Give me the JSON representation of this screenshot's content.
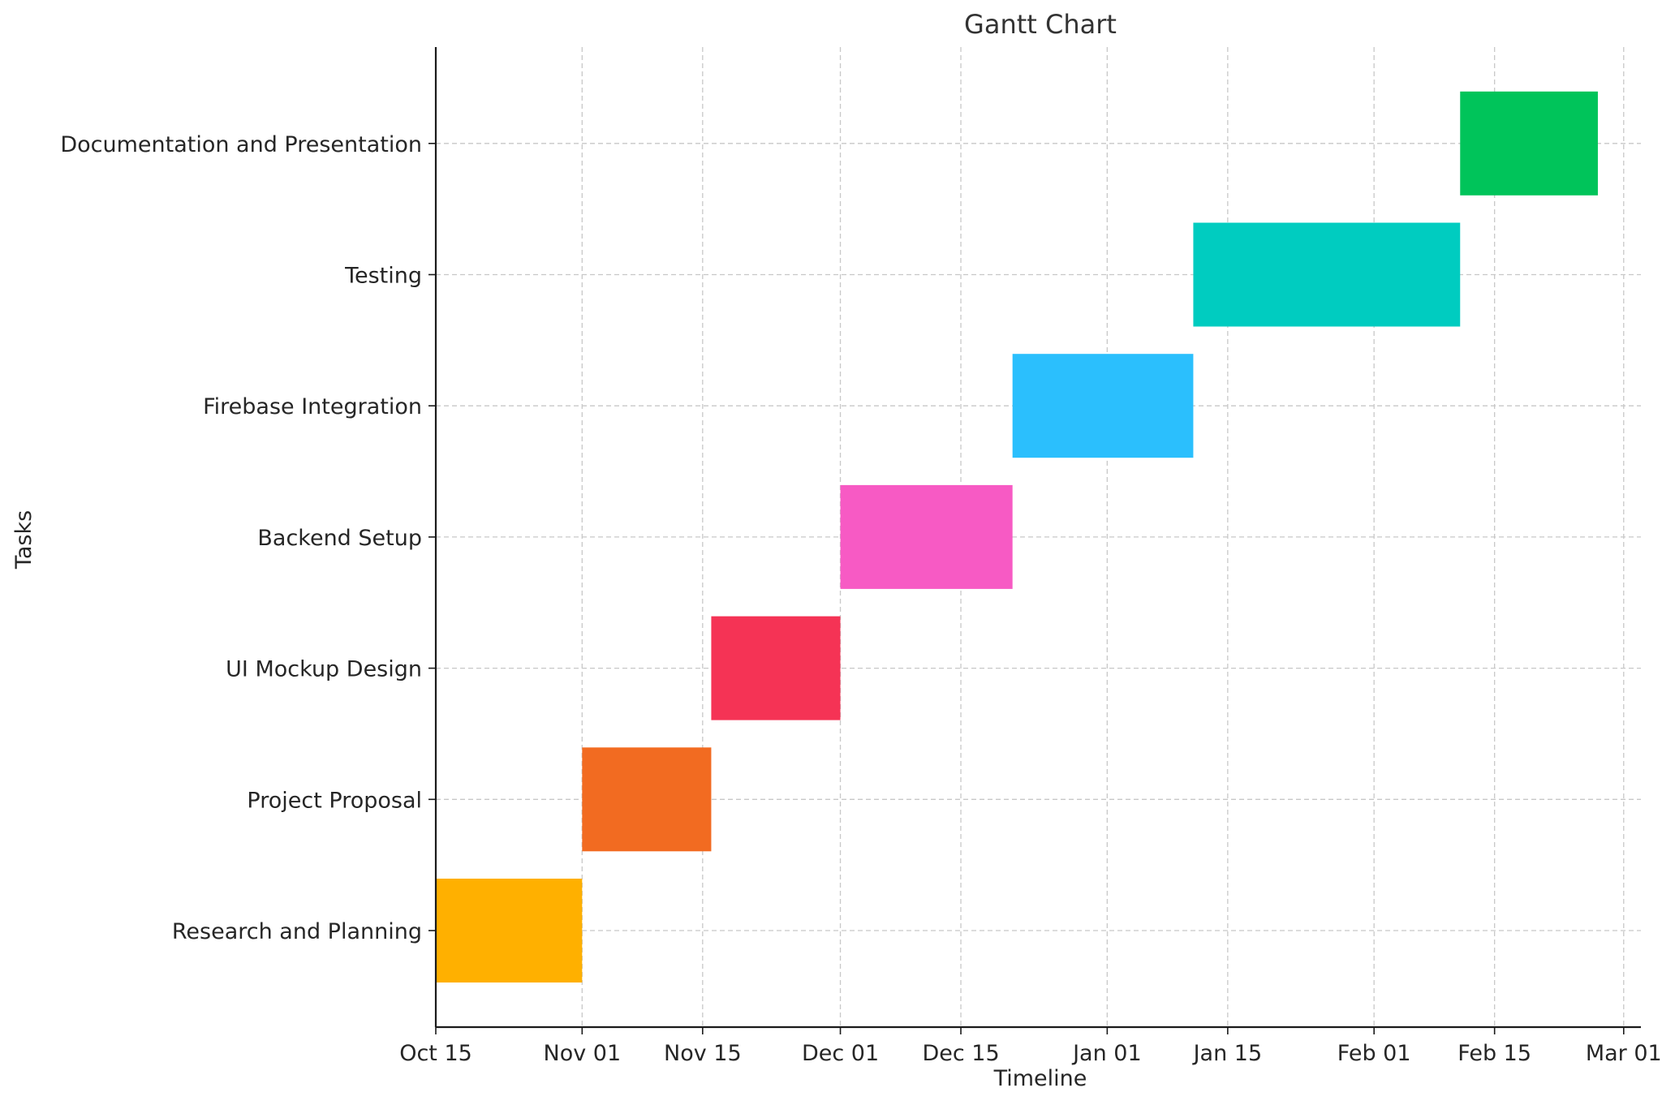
{
  "chart_data": {
    "type": "gantt",
    "title": "Gantt Chart",
    "xlabel": "Timeline",
    "ylabel": "Tasks",
    "grid": true,
    "xlim": [
      "2023-10-15",
      "2024-03-03"
    ],
    "x_ticks": [
      {
        "date": "2023-10-15",
        "label": "Oct 15"
      },
      {
        "date": "2023-11-01",
        "label": "Nov 01"
      },
      {
        "date": "2023-11-15",
        "label": "Nov 15"
      },
      {
        "date": "2023-12-01",
        "label": "Dec 01"
      },
      {
        "date": "2023-12-15",
        "label": "Dec 15"
      },
      {
        "date": "2024-01-01",
        "label": "Jan 01"
      },
      {
        "date": "2024-01-15",
        "label": "Jan 15"
      },
      {
        "date": "2024-02-01",
        "label": "Feb 01"
      },
      {
        "date": "2024-02-15",
        "label": "Feb 15"
      },
      {
        "date": "2024-03-01",
        "label": "Mar 01"
      }
    ],
    "tasks": [
      {
        "name": "Research and Planning",
        "start": "2023-10-15",
        "end": "2023-10-31",
        "color": "#FFB000"
      },
      {
        "name": "Project Proposal",
        "start": "2023-11-01",
        "end": "2023-11-15",
        "color": "#F26B21"
      },
      {
        "name": "UI Mockup Design",
        "start": "2023-11-16",
        "end": "2023-11-30",
        "color": "#F53355"
      },
      {
        "name": "Backend Setup",
        "start": "2023-12-01",
        "end": "2023-12-20",
        "color": "#F75AC4"
      },
      {
        "name": "Firebase Integration",
        "start": "2023-12-21",
        "end": "2024-01-10",
        "color": "#2BBFFD"
      },
      {
        "name": "Testing",
        "start": "2024-01-11",
        "end": "2024-02-10",
        "color": "#00CCC0"
      },
      {
        "name": "Documentation and Presentation",
        "start": "2024-02-11",
        "end": "2024-02-26",
        "color": "#00C45A"
      }
    ]
  }
}
